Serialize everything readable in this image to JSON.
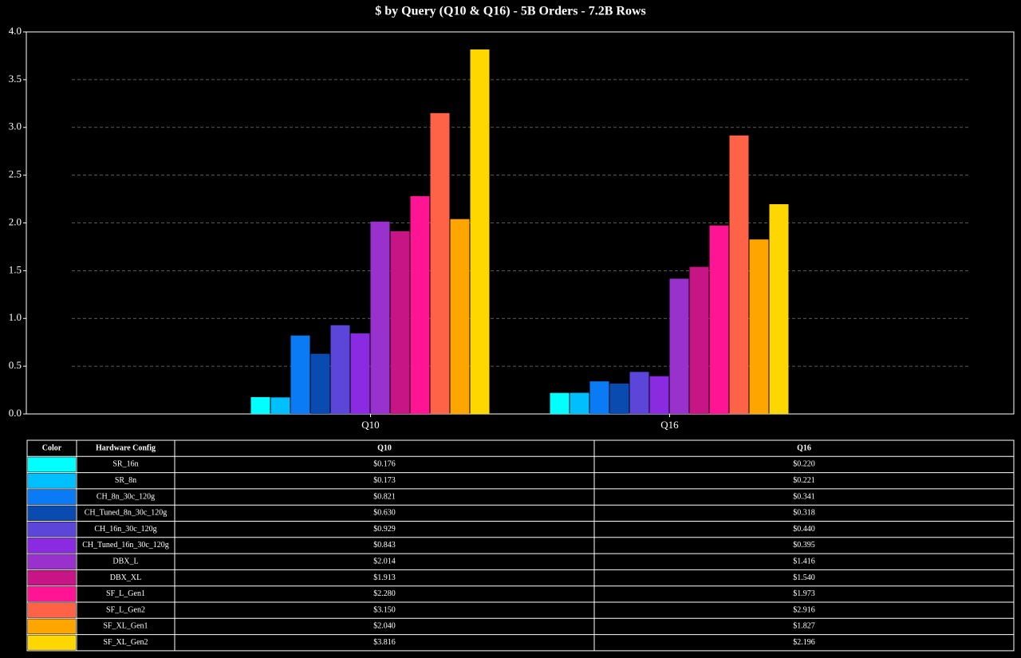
{
  "chart_data": {
    "type": "bar",
    "title": "$ by Query (Q10 & Q16) - 5B Orders - 7.2B Rows",
    "categories": [
      "Q10",
      "Q16"
    ],
    "ylim": [
      0,
      4
    ],
    "yticks": [
      {
        "value": 0,
        "label": "0.0"
      },
      0.5,
      {
        "value": 1,
        "label": "1.0"
      },
      1.5,
      {
        "value": 2,
        "label": "2.0"
      },
      2.5,
      {
        "value": 3,
        "label": "3.0"
      },
      3.5,
      {
        "value": 4,
        "label": "4.0"
      }
    ],
    "grid": true,
    "table_columns": [
      "Color",
      "Hardware Config"
    ],
    "series": [
      {
        "name": "SR_16n",
        "color": "#00ffff",
        "values": [
          0.176,
          0.22
        ],
        "value_labels": [
          "$0.176",
          "$0.220"
        ]
      },
      {
        "name": "SR_8n",
        "color": "#00bfff",
        "values": [
          0.173,
          0.221
        ],
        "value_labels": [
          "$0.173",
          "$0.221"
        ]
      },
      {
        "name": "CH_8n_30c_120g",
        "color": "#0a7bf5",
        "values": [
          0.821,
          0.341
        ],
        "value_labels": [
          "$0.821",
          "$0.341"
        ]
      },
      {
        "name": "CH_Tuned_8n_30c_120g",
        "color": "#0a4bb0",
        "values": [
          0.63,
          0.318
        ],
        "value_labels": [
          "$0.630",
          "$0.318"
        ]
      },
      {
        "name": "CH_16n_30c_120g",
        "color": "#5c45d9",
        "values": [
          0.929,
          0.44
        ],
        "value_labels": [
          "$0.929",
          "$0.440"
        ]
      },
      {
        "name": "CH_Tuned_16n_30c_120g",
        "color": "#8a2be2",
        "values": [
          0.843,
          0.395
        ],
        "value_labels": [
          "$0.843",
          "$0.395"
        ]
      },
      {
        "name": "DBX_L",
        "color": "#9932cc",
        "values": [
          2.014,
          1.416
        ],
        "value_labels": [
          "$2.014",
          "$1.416"
        ]
      },
      {
        "name": "DBX_XL",
        "color": "#c71585",
        "values": [
          1.913,
          1.54
        ],
        "value_labels": [
          "$1.913",
          "$1.540"
        ]
      },
      {
        "name": "SF_L_Gen1",
        "color": "#ff1493",
        "values": [
          2.28,
          1.973
        ],
        "value_labels": [
          "$2.280",
          "$1.973"
        ]
      },
      {
        "name": "SF_L_Gen2",
        "color": "#ff6347",
        "values": [
          3.15,
          2.916
        ],
        "value_labels": [
          "$3.150",
          "$2.916"
        ]
      },
      {
        "name": "SF_XL_Gen1",
        "color": "#ffa500",
        "values": [
          2.04,
          1.827
        ],
        "value_labels": [
          "$2.040",
          "$1.827"
        ]
      },
      {
        "name": "SF_XL_Gen2",
        "color": "#ffd700",
        "values": [
          3.816,
          2.196
        ],
        "value_labels": [
          "$3.816",
          "$2.196"
        ]
      }
    ]
  }
}
